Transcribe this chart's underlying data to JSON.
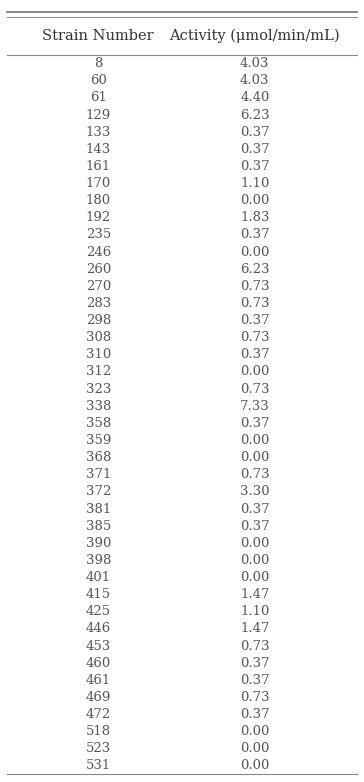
{
  "col1_header": "Strain Number",
  "col2_header": "Activity (μmol/min/mL)",
  "rows": [
    [
      "8",
      "4.03"
    ],
    [
      "60",
      "4.03"
    ],
    [
      "61",
      "4.40"
    ],
    [
      "129",
      "6.23"
    ],
    [
      "133",
      "0.37"
    ],
    [
      "143",
      "0.37"
    ],
    [
      "161",
      "0.37"
    ],
    [
      "170",
      "1.10"
    ],
    [
      "180",
      "0.00"
    ],
    [
      "192",
      "1.83"
    ],
    [
      "235",
      "0.37"
    ],
    [
      "246",
      "0.00"
    ],
    [
      "260",
      "6.23"
    ],
    [
      "270",
      "0.73"
    ],
    [
      "283",
      "0.73"
    ],
    [
      "298",
      "0.37"
    ],
    [
      "308",
      "0.73"
    ],
    [
      "310",
      "0.37"
    ],
    [
      "312",
      "0.00"
    ],
    [
      "323",
      "0.73"
    ],
    [
      "338",
      "7.33"
    ],
    [
      "358",
      "0.37"
    ],
    [
      "359",
      "0.00"
    ],
    [
      "368",
      "0.00"
    ],
    [
      "371",
      "0.73"
    ],
    [
      "372",
      "3.30"
    ],
    [
      "381",
      "0.37"
    ],
    [
      "385",
      "0.37"
    ],
    [
      "390",
      "0.00"
    ],
    [
      "398",
      "0.00"
    ],
    [
      "401",
      "0.00"
    ],
    [
      "415",
      "1.47"
    ],
    [
      "425",
      "1.10"
    ],
    [
      "446",
      "1.47"
    ],
    [
      "453",
      "0.73"
    ],
    [
      "460",
      "0.37"
    ],
    [
      "461",
      "0.37"
    ],
    [
      "469",
      "0.73"
    ],
    [
      "472",
      "0.37"
    ],
    [
      "518",
      "0.00"
    ],
    [
      "523",
      "0.00"
    ],
    [
      "531",
      "0.00"
    ]
  ],
  "bg_color": "#ffffff",
  "text_color": "#555555",
  "header_color": "#333333",
  "font_size": 9.5,
  "header_font_size": 10.5,
  "line_color": "#888888",
  "fig_width": 3.64,
  "fig_height": 7.82
}
